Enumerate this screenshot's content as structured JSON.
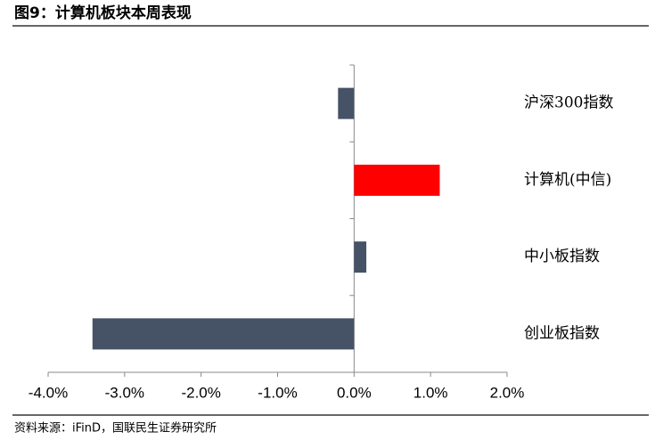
{
  "header": {
    "title": "图9：计算机板块本周表现"
  },
  "chart_data": {
    "type": "barh",
    "categories": [
      "沪深300指数",
      "计算机(中信)",
      "中小板指数",
      "创业板指数"
    ],
    "values": [
      -0.21,
      1.12,
      0.16,
      -3.42
    ],
    "colors": [
      "#465266",
      "#ff0000",
      "#465266",
      "#465266"
    ],
    "xlim": [
      -4,
      2
    ],
    "xticks": [
      {
        "value": -4,
        "label": "-4.0%"
      },
      {
        "value": -3,
        "label": "-3.0%"
      },
      {
        "value": -2,
        "label": "-2.0%"
      },
      {
        "value": -1,
        "label": "-1.0%"
      },
      {
        "value": 0,
        "label": "0.0%"
      },
      {
        "value": 1,
        "label": "1.0%"
      },
      {
        "value": 2,
        "label": "2.0%"
      }
    ]
  },
  "footer": {
    "source": "资料来源：iFinD，国联民生证券研究所"
  }
}
